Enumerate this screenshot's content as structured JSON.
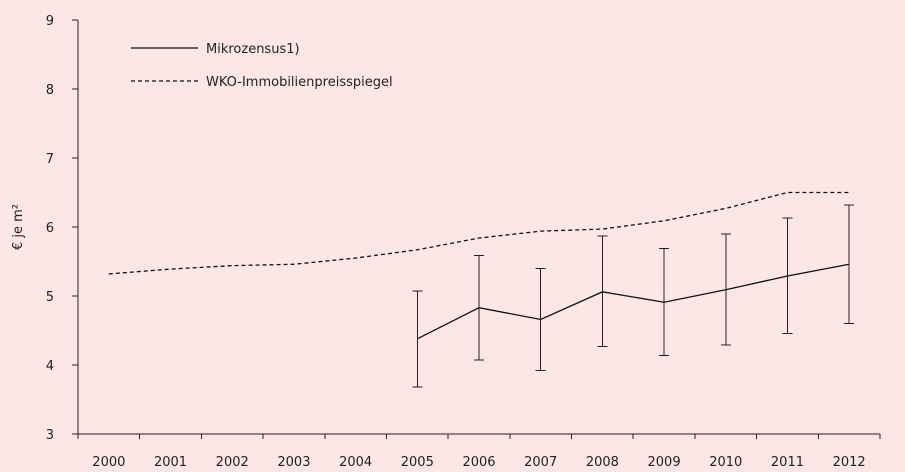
{
  "chart_data": {
    "type": "line",
    "ylabel": "€ je m²",
    "xlabel": "",
    "title": "",
    "ylim": [
      3,
      9
    ],
    "yticks": [
      3,
      4,
      5,
      6,
      7,
      8,
      9
    ],
    "categories": [
      "2000",
      "2001",
      "2002",
      "2003",
      "2004",
      "2005",
      "2006",
      "2007",
      "2008",
      "2009",
      "2010",
      "2011",
      "2012"
    ],
    "legend_position": "top-left",
    "grid": false,
    "series": [
      {
        "name": "Mikrozensus1)",
        "style": "solid",
        "color": "#111111",
        "values": [
          null,
          null,
          null,
          null,
          null,
          4.38,
          4.83,
          4.66,
          5.06,
          4.91,
          5.09,
          5.29,
          5.46
        ],
        "error_low": [
          null,
          null,
          null,
          null,
          null,
          3.68,
          4.07,
          3.92,
          4.27,
          4.14,
          4.29,
          4.46,
          4.6
        ],
        "error_high": [
          null,
          null,
          null,
          null,
          null,
          5.07,
          5.59,
          5.4,
          5.87,
          5.69,
          5.9,
          6.13,
          6.32
        ]
      },
      {
        "name": "WKO-Immobilienpreisspiegel",
        "style": "dashed",
        "color": "#111111",
        "values": [
          5.32,
          5.39,
          5.44,
          5.46,
          5.55,
          5.67,
          5.84,
          5.94,
          5.97,
          6.09,
          6.27,
          6.5,
          6.5
        ]
      }
    ]
  },
  "colors": {
    "background": "#fde6e6",
    "ink": "#111111"
  }
}
